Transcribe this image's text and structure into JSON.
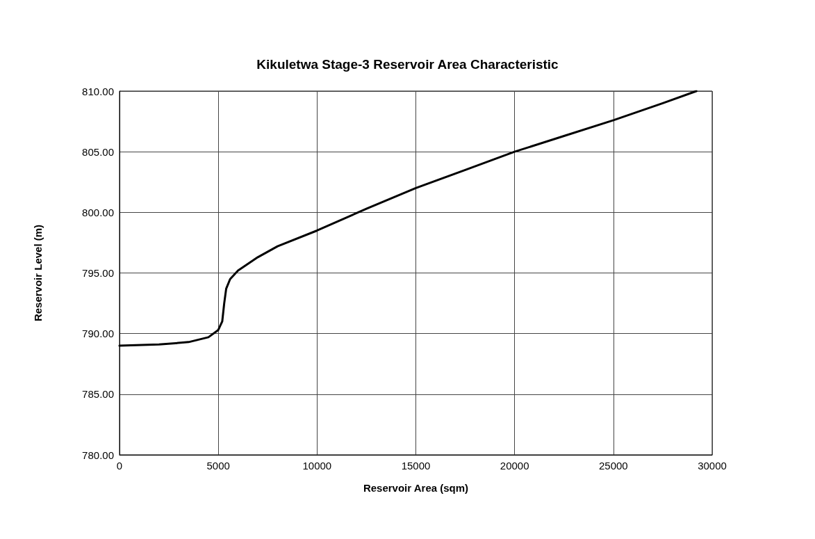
{
  "chart_data": {
    "type": "line",
    "title": "Kikuletwa Stage-3 Reservoir Area Characteristic",
    "xlabel": "Reservoir Area (sqm)",
    "ylabel": "Reservoir Level (m)",
    "x": [
      0,
      2000,
      3500,
      4500,
      5000,
      5200,
      5300,
      5400,
      5600,
      6000,
      7000,
      8000,
      10000,
      12500,
      15000,
      17500,
      20000,
      22500,
      25000,
      27500,
      29200
    ],
    "series": [
      {
        "color": "#000000",
        "values": [
          789,
          789.1,
          789.3,
          789.7,
          790.3,
          791,
          792.5,
          793.7,
          794.5,
          795.2,
          796.3,
          797.2,
          798.5,
          800.3,
          802,
          803.5,
          805,
          806.3,
          807.6,
          809,
          810
        ]
      }
    ],
    "xlim": [
      0,
      30000
    ],
    "xticks": [
      0,
      5000,
      10000,
      15000,
      20000,
      25000,
      30000
    ],
    "ylim": [
      780,
      810
    ],
    "yticks": [
      {
        "value": 780,
        "label": "780.00"
      },
      {
        "value": 785,
        "label": "785.00"
      },
      {
        "value": 790,
        "label": "790.00"
      },
      {
        "value": 795,
        "label": "795.00"
      },
      {
        "value": 800,
        "label": "800.00"
      },
      {
        "value": 805,
        "label": "805.00"
      },
      {
        "value": 810,
        "label": "810.00"
      }
    ],
    "grid": true,
    "marker": "none",
    "line_style": "solid"
  }
}
